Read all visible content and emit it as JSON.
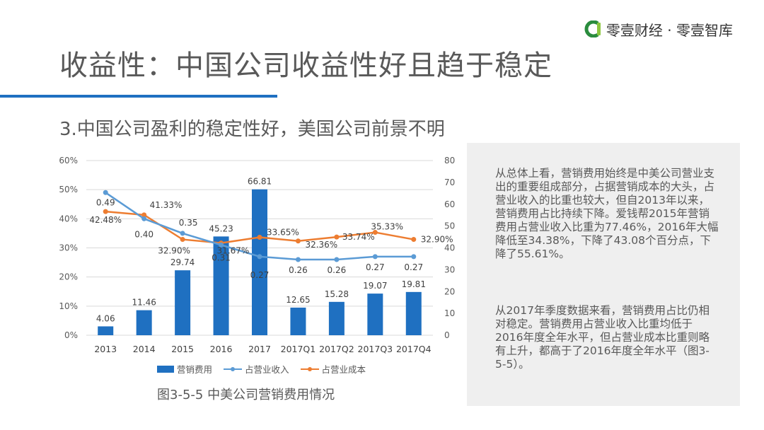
{
  "header": {
    "brand": "零壹财经 · 零壹智库",
    "brand_icon": "brand-logo-icon",
    "brand_colors": [
      "#2a8c3e",
      "#8cc63e"
    ],
    "title": "收益性：中国公司收益性好且趋于稳定",
    "subtitle": "3.中国公司盈利的稳定性好，美国公司前景不明"
  },
  "figure_caption": "图3-5-5 中美公司营销费用情况",
  "side_panel": {
    "paragraphs": [
      "从总体上看，营销费用始终是中美公司营业支出的重要组成部分，占据营销成本的大头，占营业收入的比重也较大，但自2013年以来，营销费用占比持续下降。爱钱帮2015年营销费用占营业收入比重为77.46%，2016年大幅降低至34.38%，下降了43.08个百分点，下降了55.61%。",
      "从2017年季度数据来看，营销费用占比仍相对稳定。营销费用占营业收入比重均低于2016年度全年水平，但占营业成本比重则略有上升，都高于了2016年度全年水平（图3-5-5）。"
    ]
  },
  "chart_data": {
    "type": "bar",
    "title": "",
    "categories": [
      "2013",
      "2014",
      "2015",
      "2016",
      "2017",
      "2017Q1",
      "2017Q2",
      "2017Q3",
      "2017Q4"
    ],
    "left_axis": {
      "ylim": [
        0,
        0.6
      ],
      "ticks": [
        "0%",
        "10%",
        "20%",
        "30%",
        "40%",
        "50%",
        "60%"
      ]
    },
    "right_axis": {
      "ylim": [
        0,
        80
      ],
      "ticks": [
        "0",
        "10",
        "20",
        "30",
        "40",
        "50",
        "60",
        "70",
        "80"
      ]
    },
    "grid": true,
    "legend_position": "bottom",
    "series": [
      {
        "name": "营销费用",
        "type": "bar",
        "axis": "right",
        "color": "#1f70c1",
        "values": [
          4.06,
          11.46,
          29.74,
          45.23,
          66.81,
          12.65,
          15.28,
          19.07,
          19.81
        ],
        "labels": [
          "4.06",
          "11.46",
          "29.74",
          "45.23",
          "66.81",
          "12.65",
          "15.28",
          "19.07",
          "19.81"
        ]
      },
      {
        "name": "占营业收入",
        "type": "line",
        "axis": "left",
        "color": "#5b9bd5",
        "values": [
          0.49,
          0.4,
          0.35,
          0.31,
          0.27,
          0.26,
          0.26,
          0.27,
          0.27
        ],
        "labels": [
          "0.49",
          "0.40",
          "0.35",
          "0.31",
          "0.27",
          "0.26",
          "0.26",
          "0.27",
          "0.27"
        ]
      },
      {
        "name": "占营业成本",
        "type": "line",
        "axis": "left",
        "color": "#ed7d31",
        "values": [
          0.4248,
          0.4133,
          0.329,
          0.3167,
          0.3365,
          0.3236,
          0.3374,
          0.3533,
          0.329
        ],
        "labels": [
          "42.48%",
          "41.33%",
          "32.90%",
          "31.67%",
          "33.65%",
          "32.36%",
          "33.74%",
          "35.33%",
          "32.90%"
        ]
      }
    ]
  }
}
